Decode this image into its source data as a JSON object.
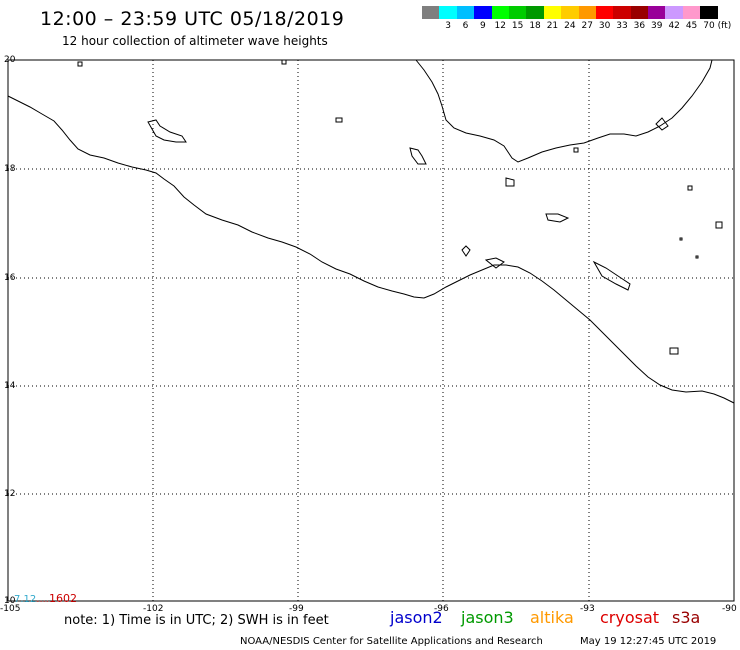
{
  "header": {
    "title": "12:00 – 23:59 UTC 05/18/2019",
    "subtitle": "12 hour collection of altimeter wave heights"
  },
  "legend": {
    "colors": [
      "#7f7f7f",
      "#00ffff",
      "#00bfff",
      "#0000ff",
      "#00ff00",
      "#00cc00",
      "#009900",
      "#ffff00",
      "#ffcc00",
      "#ff9900",
      "#ff0000",
      "#cc0000",
      "#990000",
      "#990099",
      "#cc99ff",
      "#ff99cc",
      "#000000"
    ],
    "labels": [
      "",
      "3",
      "6",
      "9",
      "12",
      "15",
      "18",
      "21",
      "24",
      "27",
      "30",
      "33",
      "36",
      "39",
      "42",
      "45",
      "70"
    ],
    "unit": "(ft)"
  },
  "map": {
    "lat_labels": [
      "20",
      "18",
      "16",
      "14",
      "12",
      "10"
    ],
    "lon_labels": [
      "-105",
      "-102",
      "-99",
      "-96",
      "-93",
      "-90"
    ],
    "track_labels": [
      {
        "text": "7.12",
        "color": "#33aacc"
      },
      {
        "text": "....",
        "color": "#cc3333"
      },
      {
        "text": "1602",
        "color": "#cc0000"
      }
    ]
  },
  "footer": {
    "note": "note: 1) Time is in UTC; 2) SWH is in feet",
    "satellites": [
      {
        "name": "jason2",
        "color": "#0000cc"
      },
      {
        "name": "jason3",
        "color": "#009900"
      },
      {
        "name": "altika",
        "color": "#ff9900"
      },
      {
        "name": "cryosat",
        "color": "#dd0000"
      },
      {
        "name": "s3a",
        "color": "#990000"
      }
    ],
    "credit": "NOAA/NESDIS Center for Satellite Applications and Research",
    "generated": "May 19 12:27:45 UTC 2019"
  }
}
